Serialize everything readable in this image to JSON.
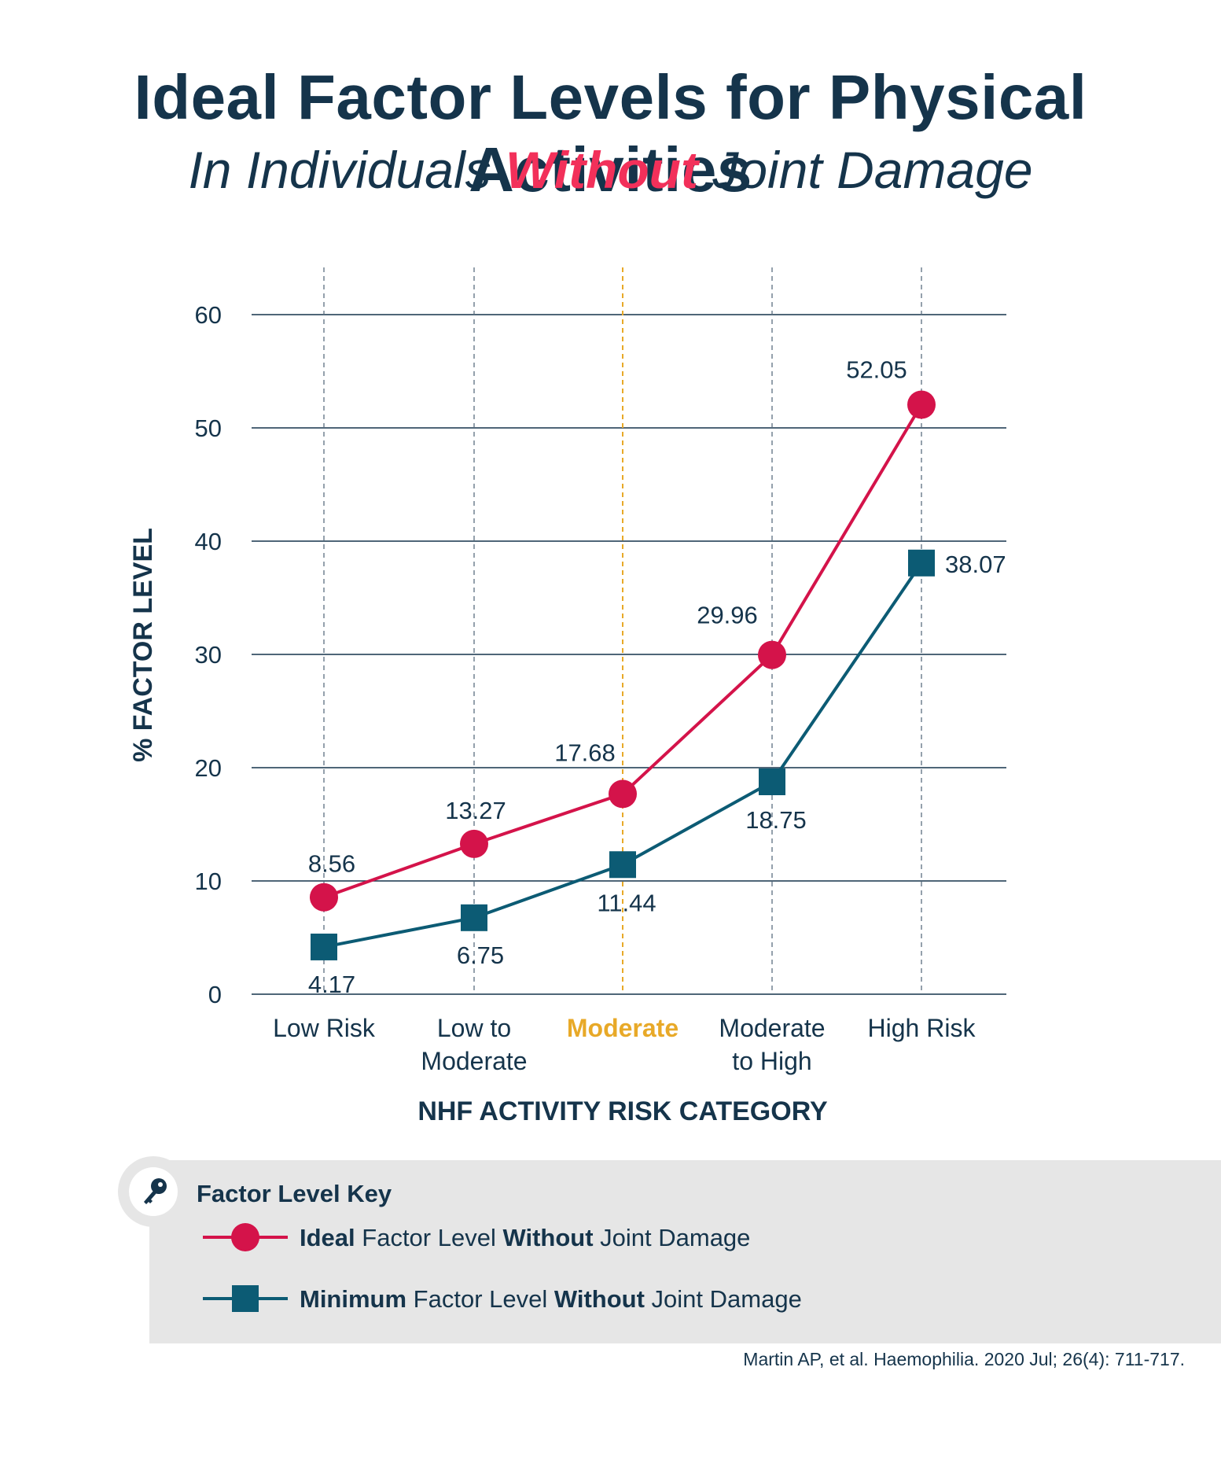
{
  "header": {
    "title": "Ideal Factor Levels for Physical Activities",
    "subtitle_before": "In Individuals ",
    "subtitle_emphasis": "Without",
    "subtitle_after": " Joint Damage"
  },
  "colors": {
    "ideal": "#d4134a",
    "minimum": "#0c5b74",
    "highlight": "#e8a928",
    "text": "#15344b",
    "accent": "#f2305a"
  },
  "chart_data": {
    "type": "line",
    "xlabel": "NHF ACTIVITY RISK CATEGORY",
    "ylabel": "% FACTOR LEVEL",
    "ylim": [
      0,
      60
    ],
    "yticks": [
      0,
      10,
      20,
      30,
      40,
      50,
      60
    ],
    "grid": "horizontal",
    "categories": [
      {
        "lines": [
          "Low Risk"
        ],
        "highlight": false
      },
      {
        "lines": [
          "Low to",
          "Moderate"
        ],
        "highlight": false
      },
      {
        "lines": [
          "Moderate"
        ],
        "highlight": true
      },
      {
        "lines": [
          "Moderate",
          "to High"
        ],
        "highlight": false
      },
      {
        "lines": [
          "High Risk"
        ],
        "highlight": false
      }
    ],
    "series": [
      {
        "name": "Ideal Factor Level Without Joint Damage",
        "marker": "circle",
        "values": [
          8.56,
          13.27,
          17.68,
          29.96,
          52.05
        ],
        "labels": [
          "8.56",
          "13.27",
          "17.68",
          "29.96",
          "52.05"
        ]
      },
      {
        "name": "Minimum Factor Level Without Joint Damage",
        "marker": "square",
        "values": [
          4.17,
          6.75,
          11.44,
          18.75,
          38.07
        ],
        "labels": [
          "4.17",
          "6.75",
          "11.44",
          "18.75",
          "38.07"
        ]
      }
    ]
  },
  "legend": {
    "title": "Factor Level Key",
    "items": [
      {
        "bold1": "Ideal",
        "mid": " Factor Level ",
        "bold2": "Without",
        "end": " Joint Damage",
        "marker": "circle",
        "color": "#d4134a"
      },
      {
        "bold1": "Minimum",
        "mid": " Factor Level ",
        "bold2": "Without",
        "end": " Joint Damage",
        "marker": "square",
        "color": "#0c5b74"
      }
    ]
  },
  "citation": "Martin AP, et al. Haemophilia. 2020 Jul; 26(4): 711-717."
}
